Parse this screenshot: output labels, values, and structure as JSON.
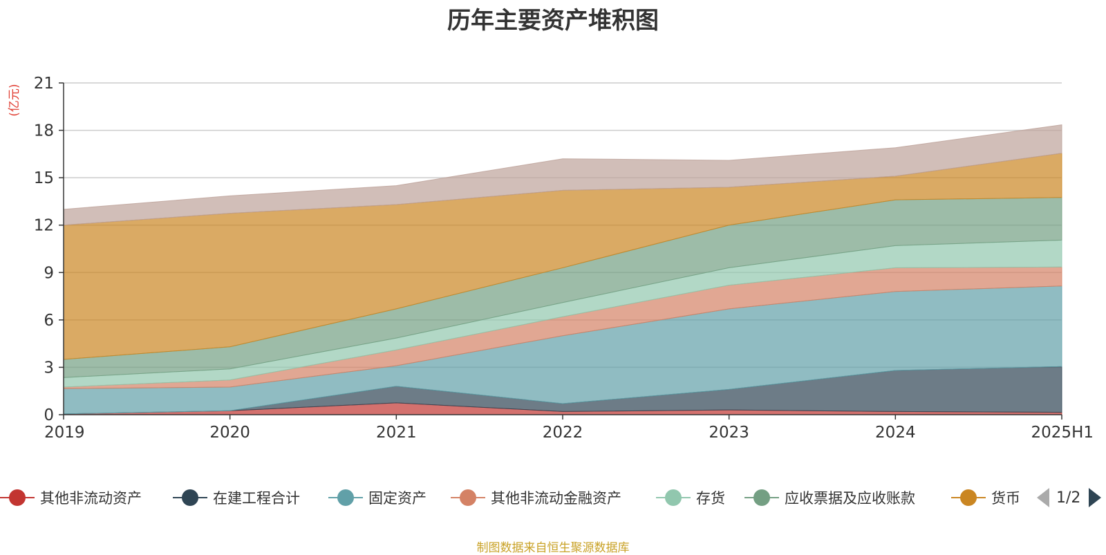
{
  "chart_data": {
    "type": "area",
    "stacked": true,
    "title": "历年主要资产堆积图",
    "ylabel": "(亿元)",
    "xlabel": "",
    "categories": [
      "2019",
      "2020",
      "2021",
      "2022",
      "2023",
      "2024",
      "2025H1"
    ],
    "ylim": [
      0,
      21
    ],
    "yticks": [
      0,
      3,
      6,
      9,
      12,
      15,
      18,
      21
    ],
    "grid": true,
    "legend_position": "bottom",
    "series": [
      {
        "name": "其他非流动资产",
        "color": "#c23531",
        "values": [
          0.05,
          0.25,
          0.75,
          0.2,
          0.3,
          0.2,
          0.15
        ]
      },
      {
        "name": "在建工程合计",
        "color": "#2f4554",
        "values": [
          0.0,
          0.0,
          1.05,
          0.5,
          1.3,
          2.6,
          2.9
        ]
      },
      {
        "name": "固定资产",
        "color": "#61a0a8",
        "values": [
          1.6,
          1.5,
          1.3,
          4.3,
          5.1,
          5.0,
          5.1
        ]
      },
      {
        "name": "其他非流动金融资产",
        "color": "#d48265",
        "values": [
          0.1,
          0.45,
          1.0,
          1.2,
          1.5,
          1.5,
          1.2
        ]
      },
      {
        "name": "存货",
        "color": "#91c7ae",
        "values": [
          0.6,
          0.7,
          0.75,
          0.9,
          1.1,
          1.4,
          1.7
        ]
      },
      {
        "name": "应收票据及应收账款",
        "color": "#749f83",
        "values": [
          1.15,
          1.4,
          1.85,
          2.2,
          2.7,
          2.9,
          2.7
        ]
      },
      {
        "name": "货币",
        "color": "#ca8622",
        "values": [
          8.5,
          8.45,
          6.6,
          4.9,
          2.4,
          1.5,
          2.8
        ]
      },
      {
        "name": "",
        "color": "#bda29a",
        "values": [
          1.0,
          1.1,
          1.2,
          2.0,
          1.7,
          1.8,
          1.8
        ]
      }
    ]
  },
  "legend": {
    "page_indicator": "1/2"
  },
  "footer": {
    "source": "制图数据来自恒生聚源数据库"
  }
}
